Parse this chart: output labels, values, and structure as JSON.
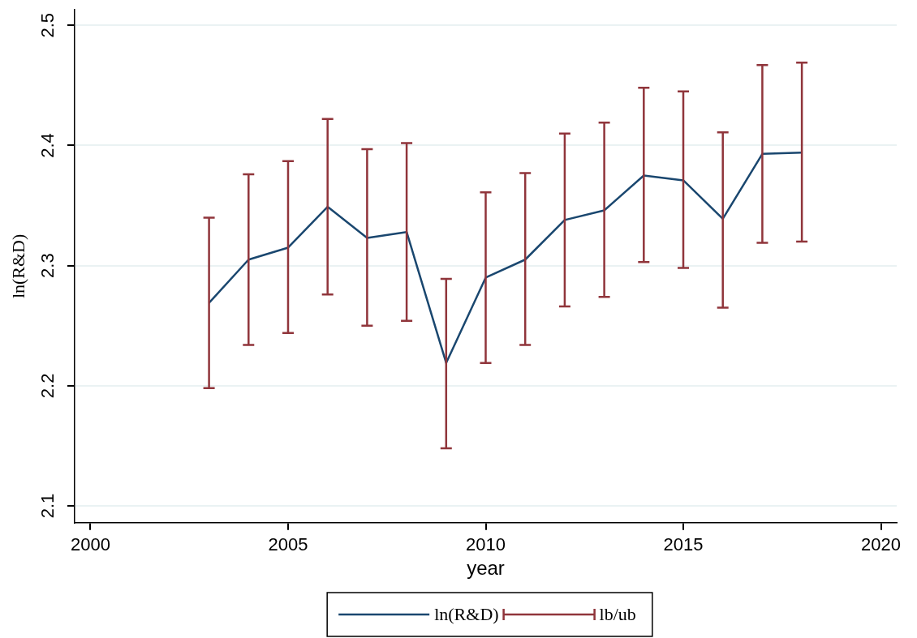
{
  "chart_data": {
    "type": "line",
    "xlabel": "year",
    "ylabel": "ln(R&D)",
    "x": [
      2003,
      2004,
      2005,
      2006,
      2007,
      2008,
      2009,
      2010,
      2011,
      2012,
      2013,
      2014,
      2015,
      2016,
      2017,
      2018
    ],
    "series": [
      {
        "name": "ln(R&D)",
        "color": "#1a476f",
        "values": [
          2.269,
          2.305,
          2.315,
          2.349,
          2.323,
          2.328,
          2.219,
          2.29,
          2.305,
          2.338,
          2.346,
          2.375,
          2.371,
          2.339,
          2.393,
          2.394
        ],
        "errors": [
          [
            2.198,
            2.34
          ],
          [
            2.234,
            2.376
          ],
          [
            2.244,
            2.387
          ],
          [
            2.276,
            2.422
          ],
          [
            2.25,
            2.397
          ],
          [
            2.254,
            2.402
          ],
          [
            2.148,
            2.289
          ],
          [
            2.219,
            2.361
          ],
          [
            2.234,
            2.377
          ],
          [
            2.266,
            2.41
          ],
          [
            2.274,
            2.419
          ],
          [
            2.303,
            2.448
          ],
          [
            2.298,
            2.445
          ],
          [
            2.265,
            2.411
          ],
          [
            2.319,
            2.467
          ],
          [
            2.32,
            2.469
          ]
        ]
      },
      {
        "name": "lb/ub",
        "color": "#90353b",
        "values": [
          null,
          null,
          null,
          null,
          null,
          null,
          null,
          null,
          null,
          null,
          null,
          null,
          null,
          null,
          null,
          null
        ]
      }
    ],
    "xlim": [
      1999.6,
      2020.4
    ],
    "xticks": [
      2000,
      2005,
      2010,
      2015,
      2020
    ],
    "ylim": [
      2.086,
      2.513
    ],
    "yticks": [
      2.1,
      2.2,
      2.3,
      2.4,
      2.5
    ],
    "grid": "y",
    "legend": "bottom",
    "line_style": "solid"
  }
}
